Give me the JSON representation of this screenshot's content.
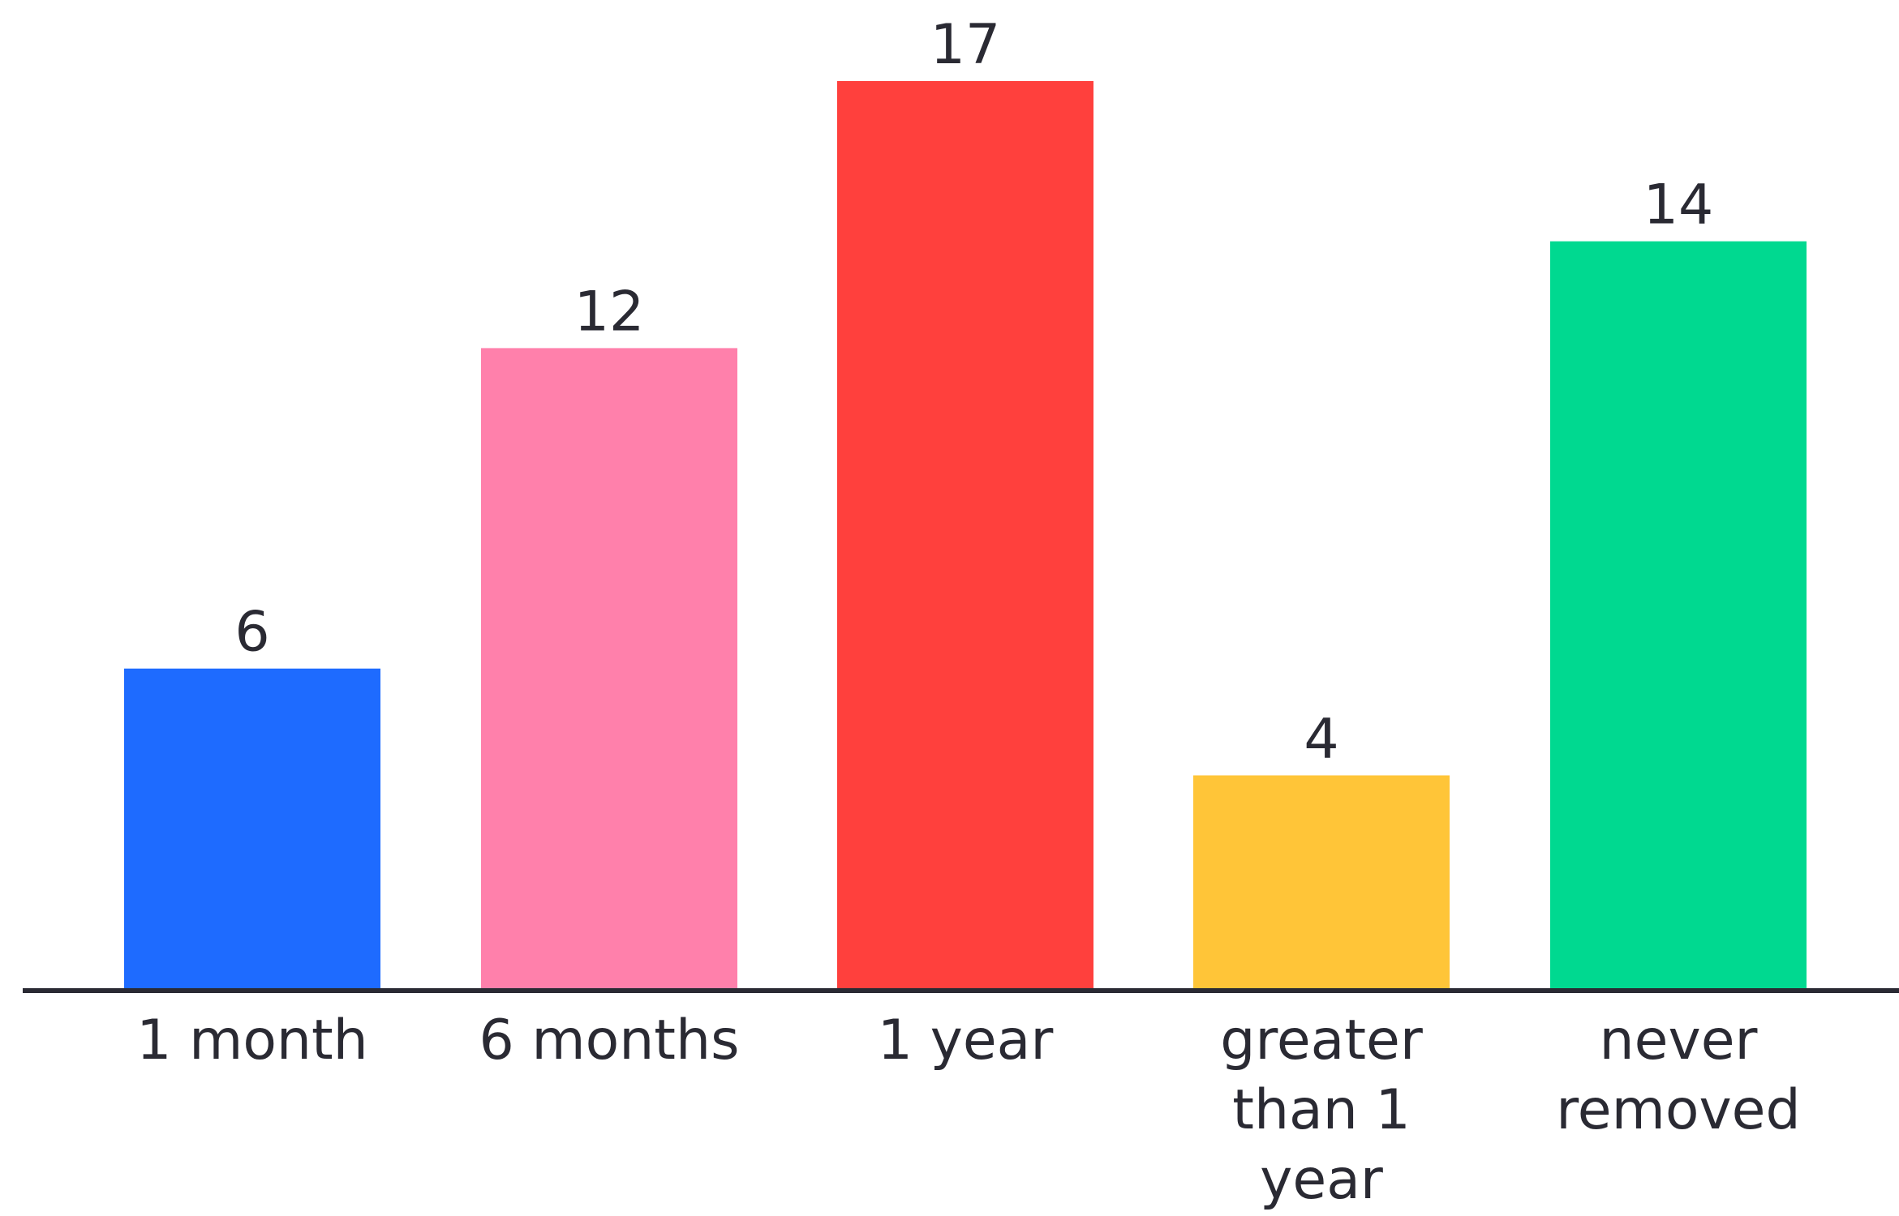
{
  "chart_data": {
    "type": "bar",
    "categories": [
      [
        "1 month"
      ],
      [
        "6 months"
      ],
      [
        "1 year"
      ],
      [
        "greater",
        "than 1",
        "year"
      ],
      [
        "never",
        "removed"
      ]
    ],
    "values": [
      6,
      12,
      17,
      4,
      14
    ],
    "colors": [
      "#1e6bff",
      "#ff80ab",
      "#ff403d",
      "#ffc538",
      "#00d990"
    ],
    "axis_color": "#2a2a33",
    "title": "",
    "xlabel": "",
    "ylabel": "",
    "ylim": [
      0,
      17
    ],
    "grid": false,
    "legend": "none",
    "data_labels": true
  }
}
